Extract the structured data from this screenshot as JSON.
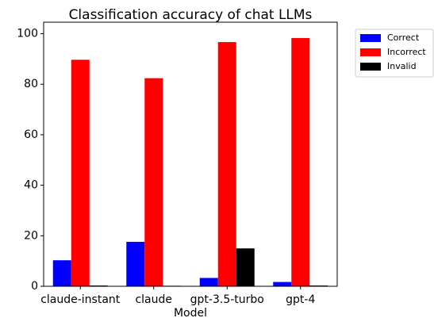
{
  "chart_data": {
    "type": "bar",
    "title": "Classification accuracy of chat LLMs",
    "x_label": "Model",
    "categories": [
      "claude-instant",
      "claude",
      "gpt-3.5-turbo",
      "gpt-4"
    ],
    "series": [
      {
        "name": "Correct",
        "color": "#0000ff",
        "values": [
          10.3,
          17.6,
          3.3,
          1.7
        ]
      },
      {
        "name": "Incorrect",
        "color": "#ff0000",
        "values": [
          89.7,
          82.4,
          96.7,
          98.3
        ]
      },
      {
        "name": "Invalid",
        "color": "#000000",
        "values": [
          0.3,
          0.2,
          15.0,
          0.3
        ]
      }
    ],
    "ylim": [
      0,
      103
    ],
    "yticks": [
      0,
      20,
      40,
      60,
      80,
      100
    ],
    "legend": "outside-upper-right"
  }
}
